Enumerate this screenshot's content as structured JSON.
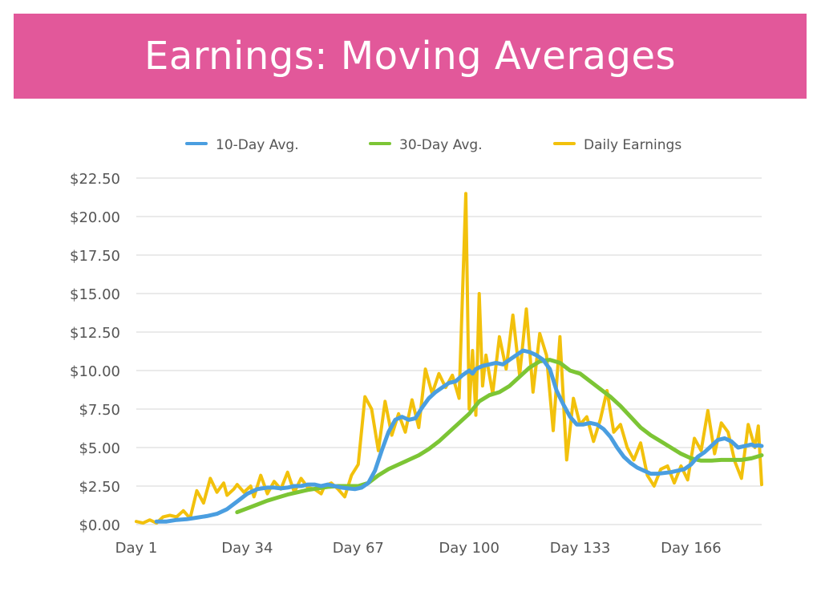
{
  "colors": {
    "title_bar": "#e2589a",
    "avg10": "#4a9ee0",
    "avg30": "#7cc535",
    "daily": "#f2c10c",
    "grid": "#d4d4d4",
    "axis_text": "#555555"
  },
  "chart_data": {
    "type": "line",
    "title": "Earnings: Moving Averages",
    "xlabel": "",
    "ylabel": "",
    "ylim": [
      0,
      22.5
    ],
    "y_ticks": [
      "$0.00",
      "$2.50",
      "$5.00",
      "$7.50",
      "$10.00",
      "$12.50",
      "$15.00",
      "$17.50",
      "$20.00",
      "$22.50"
    ],
    "x_ticks": [
      "Day 1",
      "Day 34",
      "Day 67",
      "Day 100",
      "Day 133",
      "Day 166"
    ],
    "x_tick_values": [
      1,
      34,
      67,
      100,
      133,
      166
    ],
    "x_range": [
      1,
      187
    ],
    "grid": "horizontal",
    "legend": {
      "position": "top",
      "entries": [
        "10-Day Avg.",
        "30-Day Avg.",
        "Daily Earnings"
      ]
    },
    "series": [
      {
        "name": "Daily Earnings",
        "color_key": "daily",
        "x": [
          1,
          3,
          5,
          7,
          9,
          11,
          13,
          15,
          17,
          19,
          21,
          23,
          25,
          27,
          28,
          30,
          31,
          33,
          35,
          36,
          38,
          40,
          42,
          44,
          46,
          48,
          50,
          52,
          54,
          56,
          57,
          59,
          61,
          63,
          65,
          67,
          69,
          71,
          73,
          75,
          77,
          79,
          81,
          83,
          85,
          87,
          89,
          91,
          93,
          95,
          97,
          99,
          100,
          101,
          102,
          103,
          104,
          105,
          107,
          109,
          111,
          113,
          115,
          117,
          119,
          121,
          123,
          125,
          127,
          129,
          131,
          133,
          135,
          137,
          139,
          141,
          143,
          145,
          147,
          149,
          151,
          153,
          155,
          157,
          159,
          161,
          163,
          165,
          167,
          169,
          171,
          173,
          175,
          177,
          179,
          181,
          183,
          185,
          186,
          187
        ],
        "values": [
          0.2,
          0.1,
          0.3,
          0.1,
          0.5,
          0.6,
          0.5,
          0.9,
          0.4,
          2.2,
          1.4,
          3.0,
          2.1,
          2.7,
          1.9,
          2.3,
          2.6,
          2.1,
          2.5,
          1.8,
          3.2,
          2.0,
          2.8,
          2.3,
          3.4,
          2.1,
          3.0,
          2.4,
          2.3,
          2.0,
          2.5,
          2.7,
          2.3,
          1.8,
          3.2,
          3.9,
          8.3,
          7.5,
          4.8,
          8.0,
          5.8,
          7.2,
          6.0,
          8.1,
          6.3,
          10.1,
          8.5,
          9.8,
          8.9,
          9.7,
          8.2,
          21.5,
          7.5,
          11.3,
          7.1,
          15.0,
          9.0,
          11.0,
          8.5,
          12.2,
          10.1,
          13.6,
          9.7,
          14.0,
          8.6,
          12.4,
          11.0,
          6.1,
          12.2,
          4.2,
          8.2,
          6.5,
          7.0,
          5.4,
          6.8,
          8.7,
          6.0,
          6.5,
          5.0,
          4.2,
          5.3,
          3.2,
          2.5,
          3.6,
          3.8,
          2.7,
          3.8,
          2.9,
          5.6,
          4.8,
          7.4,
          4.6,
          6.6,
          6.0,
          4.1,
          3.0,
          6.5,
          5.0,
          6.4,
          2.6
        ]
      },
      {
        "name": "10-Day Avg.",
        "color_key": "avg10",
        "x": [
          7,
          10,
          13,
          16,
          19,
          22,
          25,
          28,
          31,
          34,
          37,
          40,
          42,
          44,
          46,
          48,
          50,
          52,
          54,
          56,
          58,
          60,
          62,
          64,
          66,
          68,
          70,
          72,
          74,
          76,
          78,
          80,
          82,
          84,
          86,
          88,
          90,
          92,
          94,
          96,
          98,
          100,
          101,
          102,
          104,
          106,
          108,
          110,
          112,
          114,
          116,
          118,
          120,
          122,
          124,
          126,
          128,
          130,
          132,
          134,
          136,
          138,
          140,
          142,
          144,
          146,
          148,
          150,
          152,
          154,
          156,
          158,
          160,
          162,
          164,
          166,
          168,
          170,
          172,
          174,
          176,
          178,
          180,
          182,
          184,
          185,
          186,
          187
        ],
        "values": [
          0.2,
          0.2,
          0.3,
          0.35,
          0.45,
          0.55,
          0.7,
          1.0,
          1.5,
          2.0,
          2.3,
          2.4,
          2.4,
          2.35,
          2.4,
          2.5,
          2.5,
          2.6,
          2.6,
          2.5,
          2.6,
          2.5,
          2.4,
          2.35,
          2.3,
          2.4,
          2.7,
          3.5,
          4.8,
          6.0,
          6.8,
          7.0,
          6.8,
          6.9,
          7.6,
          8.2,
          8.6,
          8.9,
          9.2,
          9.3,
          9.7,
          10.0,
          9.8,
          10.1,
          10.3,
          10.4,
          10.5,
          10.4,
          10.7,
          11.0,
          11.3,
          11.2,
          11.0,
          10.7,
          10.1,
          8.7,
          7.8,
          7.0,
          6.5,
          6.5,
          6.6,
          6.5,
          6.2,
          5.7,
          5.0,
          4.4,
          4.0,
          3.7,
          3.5,
          3.3,
          3.3,
          3.35,
          3.4,
          3.5,
          3.6,
          3.9,
          4.4,
          4.7,
          5.1,
          5.5,
          5.6,
          5.4,
          5.0,
          5.1,
          5.2,
          5.1,
          5.15,
          5.1
        ]
      },
      {
        "name": "30-Day Avg.",
        "color_key": "avg30",
        "x": [
          31,
          34,
          37,
          40,
          43,
          46,
          49,
          52,
          55,
          58,
          61,
          64,
          67,
          70,
          73,
          76,
          79,
          82,
          85,
          88,
          91,
          94,
          97,
          100,
          103,
          106,
          109,
          112,
          115,
          118,
          121,
          124,
          127,
          130,
          133,
          136,
          139,
          142,
          145,
          148,
          151,
          154,
          157,
          160,
          163,
          166,
          169,
          172,
          175,
          178,
          181,
          184,
          187
        ],
        "values": [
          0.8,
          1.05,
          1.3,
          1.55,
          1.75,
          1.95,
          2.1,
          2.25,
          2.35,
          2.45,
          2.5,
          2.5,
          2.5,
          2.7,
          3.2,
          3.6,
          3.9,
          4.2,
          4.5,
          4.9,
          5.4,
          6.0,
          6.6,
          7.2,
          8.0,
          8.4,
          8.6,
          9.0,
          9.6,
          10.2,
          10.6,
          10.7,
          10.5,
          10.0,
          9.8,
          9.3,
          8.8,
          8.3,
          7.7,
          7.0,
          6.3,
          5.8,
          5.4,
          5.0,
          4.6,
          4.3,
          4.15,
          4.15,
          4.2,
          4.2,
          4.2,
          4.3,
          4.5
        ]
      }
    ]
  }
}
